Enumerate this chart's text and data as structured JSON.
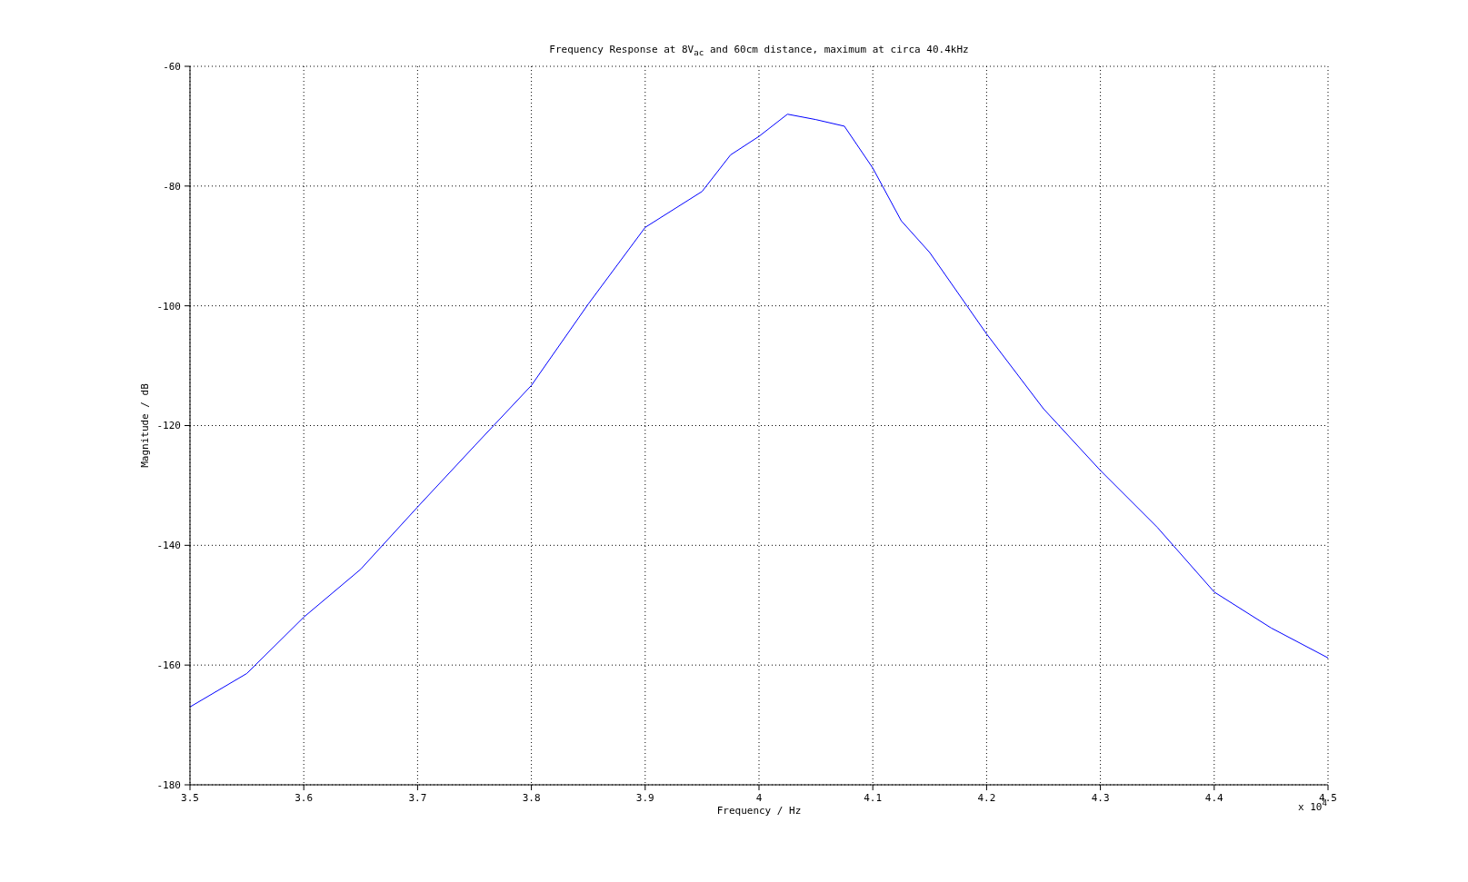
{
  "chart_data": {
    "type": "line",
    "title": "Frequency Response at 8V$_{ac}$ and 60cm distance, maximum at circa 40.4kHz",
    "xlabel": "Frequency / Hz",
    "ylabel": "Magnitude / dB",
    "annotations": [
      "x 10$^{4}$"
    ],
    "x": [
      3.5,
      3.55,
      3.6,
      3.65,
      3.7,
      3.75,
      3.8,
      3.85,
      3.9,
      3.95,
      3.975,
      4.0,
      4.025,
      4.05,
      4.075,
      4.1,
      4.125,
      4.15,
      4.2,
      4.25,
      4.3,
      4.35,
      4.4,
      4.45,
      4.5
    ],
    "series": [
      {
        "color": "#0000ff",
        "values": [
          -167,
          -161.4,
          -152,
          -144,
          -133.6,
          -123.4,
          -113.3,
          -99.7,
          -86.9,
          -80.9,
          -74.8,
          -71.7,
          -68,
          -68.9,
          -70,
          -77,
          -85.8,
          -91.1,
          -104.7,
          -117.2,
          -127.5,
          -137,
          -147.8,
          -153.8,
          -158.8
        ]
      }
    ],
    "xlim": [
      3.5,
      4.5
    ],
    "xticks": [
      3.5,
      3.6,
      3.7,
      3.8,
      3.9,
      4,
      4.1,
      4.2,
      4.3,
      4.4,
      4.5
    ],
    "ylim": [
      -180,
      -60
    ],
    "yticks": [
      -180,
      -160,
      -140,
      -120,
      -100,
      -80,
      -60
    ],
    "grid": true,
    "legend": false,
    "marker": "none",
    "line_style": "solid"
  }
}
